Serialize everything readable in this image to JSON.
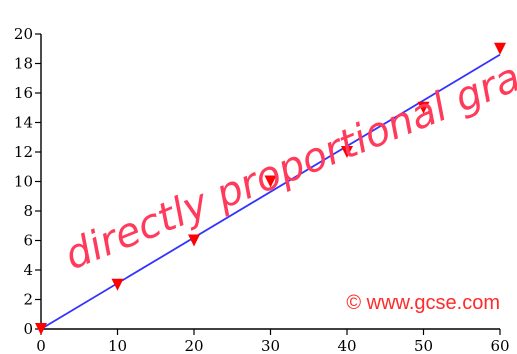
{
  "chart_data": {
    "type": "scatter",
    "x_ticks": [
      0,
      10,
      20,
      30,
      40,
      50,
      60
    ],
    "y_ticks": [
      0,
      2,
      4,
      6,
      8,
      10,
      12,
      14,
      16,
      18,
      20
    ],
    "xlim": [
      0,
      60
    ],
    "ylim": [
      0,
      20
    ],
    "grid": false,
    "points": [
      {
        "x": 0,
        "y": 0
      },
      {
        "x": 10,
        "y": 3
      },
      {
        "x": 20,
        "y": 6
      },
      {
        "x": 30,
        "y": 10
      },
      {
        "x": 40,
        "y": 12
      },
      {
        "x": 50,
        "y": 15
      },
      {
        "x": 60,
        "y": 19
      }
    ],
    "fit_line": {
      "x": [
        0,
        60
      ],
      "y": [
        0,
        18.6
      ]
    },
    "annotation": "directly proportional graph",
    "copyright": "© www.gcse.com"
  },
  "colors": {
    "marker": "#ff0000",
    "line": "#3333ff",
    "annotation": "#ff3a5a",
    "copyright": "#ff2a2a",
    "axis": "#000000"
  }
}
